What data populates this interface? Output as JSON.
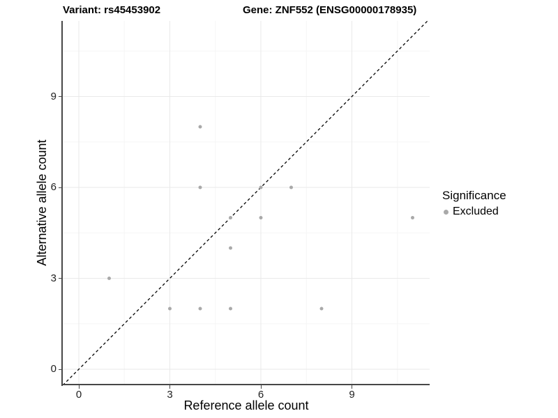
{
  "titles": {
    "variant": "Variant: rs45453902",
    "gene": "Gene: ZNF552 (ENSG00000178935)"
  },
  "legend": {
    "title": "Significance",
    "items": [
      {
        "label": "Excluded",
        "color": "#a9a9a9"
      }
    ]
  },
  "chart_data": {
    "type": "scatter",
    "title_left": "Variant: rs45453902",
    "title_right": "Gene: ZNF552 (ENSG00000178935)",
    "xlabel": "Reference allele count",
    "ylabel": "Alternative allele count",
    "x_ticks": [
      0,
      3,
      6,
      9
    ],
    "y_ticks": [
      0,
      3,
      6,
      9
    ],
    "x_minor_ticks": [
      1.5,
      4.5,
      7.5,
      10.5
    ],
    "y_minor_ticks": [
      1.5,
      4.5,
      7.5,
      10.5
    ],
    "xlim": [
      -0.55,
      11.55
    ],
    "ylim": [
      -0.55,
      11.55
    ],
    "grid": "major+minor",
    "legend_position": "right",
    "series": [
      {
        "name": "Excluded",
        "color": "#a9a9a9",
        "marker": "circle",
        "points": [
          [
            1,
            3
          ],
          [
            3,
            2
          ],
          [
            4,
            2
          ],
          [
            4,
            6
          ],
          [
            4,
            8
          ],
          [
            5,
            2
          ],
          [
            5,
            4
          ],
          [
            5,
            5
          ],
          [
            6,
            5
          ],
          [
            6,
            6
          ],
          [
            7,
            6
          ],
          [
            8,
            2
          ],
          [
            11,
            5
          ]
        ]
      }
    ],
    "reference_line": {
      "kind": "identity",
      "slope": 1,
      "intercept": 0,
      "style": "dashed",
      "color": "#000000"
    }
  },
  "style": {
    "point_color": "#a9a9a9",
    "point_radius": 2.5,
    "grid_major_color": "#e9e9e9",
    "grid_minor_color": "#f5f5f5",
    "axis_line_color": "#474747",
    "background": "#ffffff"
  }
}
